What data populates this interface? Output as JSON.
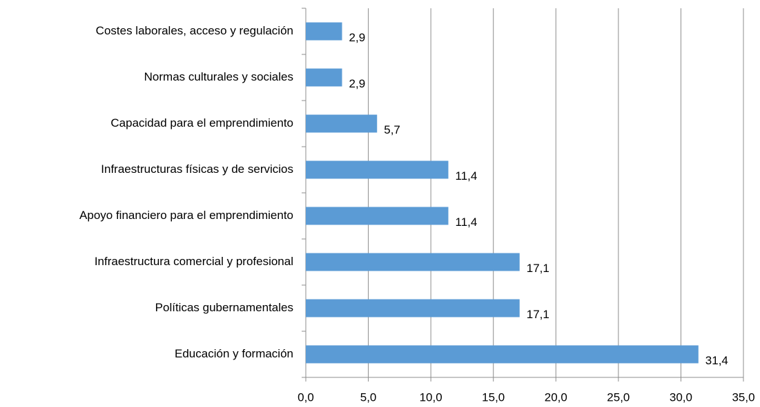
{
  "chart_data": {
    "type": "hbar",
    "categories": [
      "Costes laborales, acceso y regulación",
      "Normas culturales y sociales",
      "Capacidad para el emprendimiento",
      "Infraestructuras físicas y de servicios",
      "Apoyo financiero para el emprendimiento",
      "Infraestructura comercial y profesional",
      "Políticas gubernamentales",
      "Educación y formación"
    ],
    "values": [
      2.9,
      2.9,
      5.7,
      11.4,
      11.4,
      17.1,
      17.1,
      31.4
    ],
    "value_labels": [
      "2,9",
      "2,9",
      "5,7",
      "11,4",
      "11,4",
      "17,1",
      "17,1",
      "31,4"
    ],
    "color": "#5b9bd5",
    "xlim": [
      0,
      35
    ],
    "xticks": [
      {
        "value": 0,
        "label": "0,0"
      },
      {
        "value": 5,
        "label": "5,0"
      },
      {
        "value": 10,
        "label": "10,0"
      },
      {
        "value": 15,
        "label": "15,0"
      },
      {
        "value": 20,
        "label": "20,0"
      },
      {
        "value": 25,
        "label": "25,0"
      },
      {
        "value": 30,
        "label": "30,0"
      },
      {
        "value": 35,
        "label": "35,0"
      }
    ],
    "grid": true
  }
}
